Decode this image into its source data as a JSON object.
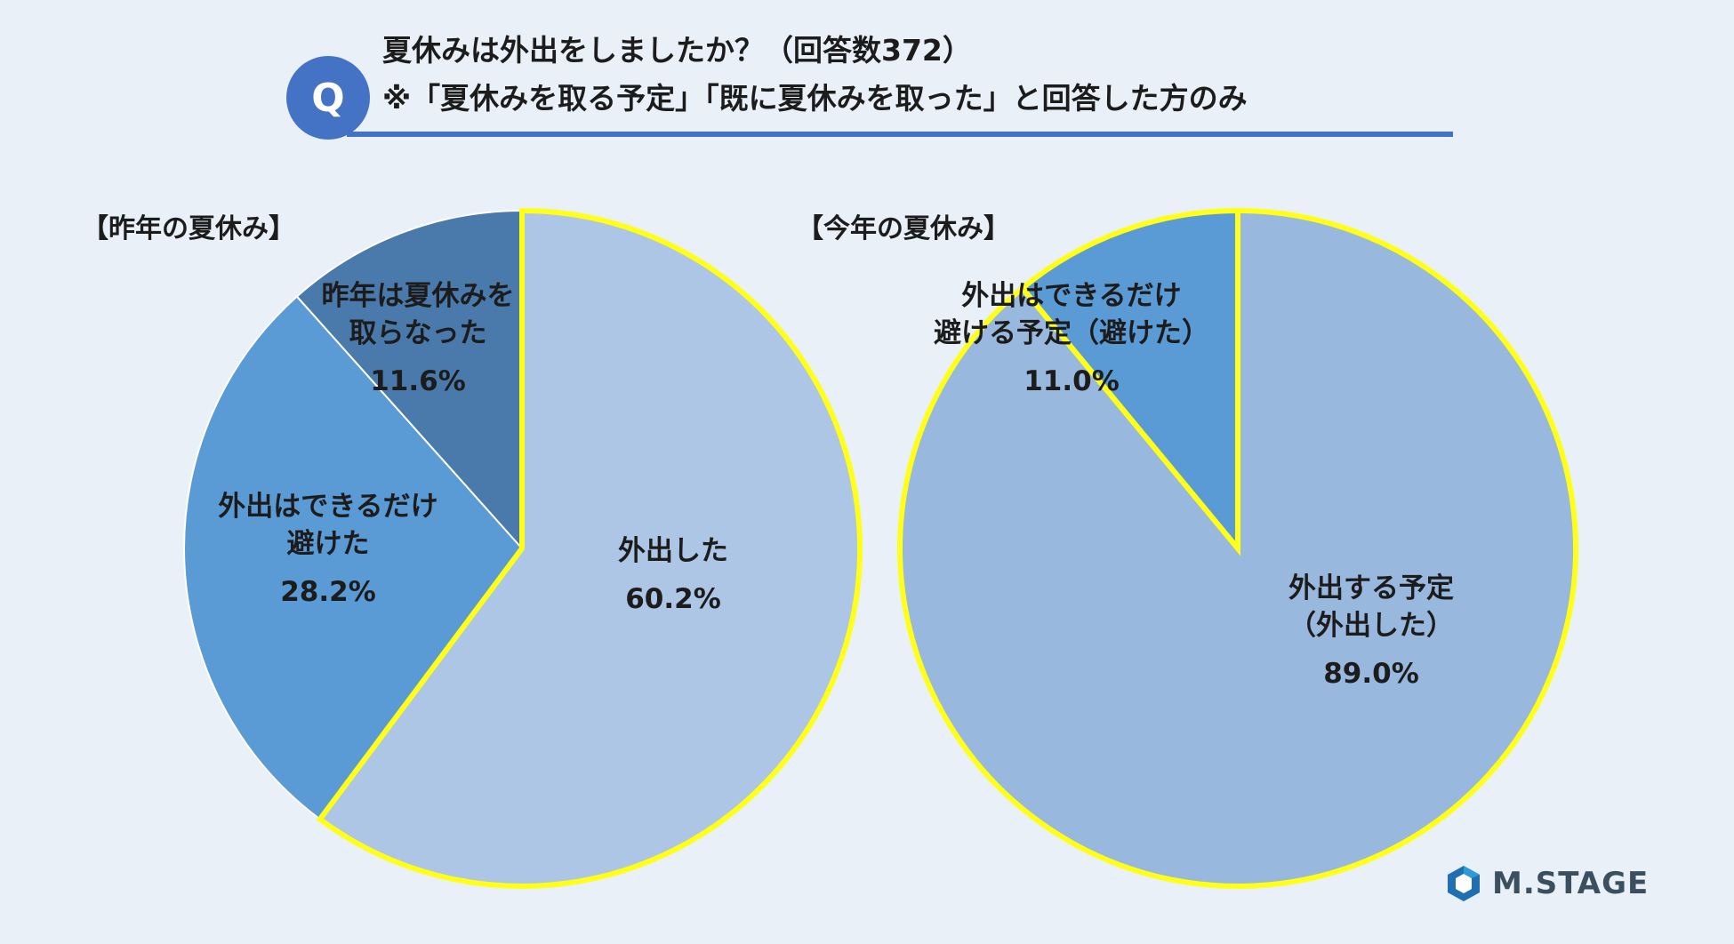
{
  "question": {
    "badge": "Q",
    "line1": "夏休みは外出をしましたか？（回答数372）",
    "line2": "※「夏休みを取る予定」「既に夏休みを取った」と回答した方のみ"
  },
  "logo": {
    "text": "M.STAGE",
    "icon": "hexagon-logo-icon"
  },
  "colors": {
    "light": "#aec6e5",
    "medium": "#5b9bd5",
    "dark": "#4a7aab",
    "today_main": "#99b8de",
    "highlight": "#ffff1a"
  },
  "chart_data": [
    {
      "type": "pie",
      "title": "【昨年の夏休み】",
      "slices": [
        {
          "label": [
            "外出した"
          ],
          "value": 60.2,
          "pct": "60.2%",
          "color": "#aec6e5",
          "highlight": true
        },
        {
          "label": [
            "外出はできるだけ",
            "避けた"
          ],
          "value": 28.2,
          "pct": "28.2%",
          "color": "#5b9bd5",
          "highlight": false
        },
        {
          "label": [
            "昨年は夏休みを",
            "取らなった"
          ],
          "value": 11.6,
          "pct": "11.6%",
          "color": "#4a7aab",
          "highlight": false
        }
      ]
    },
    {
      "type": "pie",
      "title": "【今年の夏休み】",
      "slices": [
        {
          "label": [
            "外出する予定",
            "（外出した）"
          ],
          "value": 89.0,
          "pct": "89.0%",
          "color": "#99b8de",
          "highlight": true
        },
        {
          "label": [
            "外出はできるだけ",
            "避ける予定（避けた）"
          ],
          "value": 11.0,
          "pct": "11.0%",
          "color": "#5b9bd5",
          "highlight": true
        }
      ]
    }
  ]
}
